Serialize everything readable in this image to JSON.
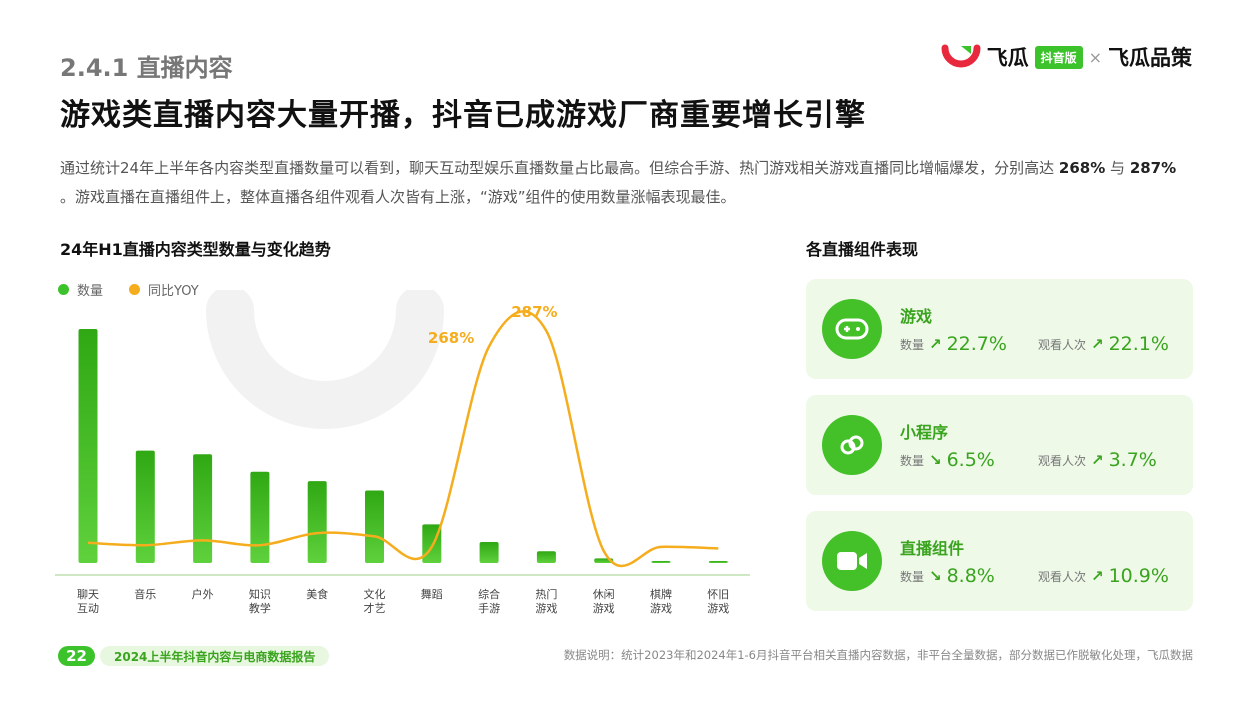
{
  "header": {
    "section": "2.4.1 直播内容",
    "headline": "游戏类直播内容大量开播，抖音已成游戏厂商重要增长引擎",
    "brand": {
      "left_text": "飞瓜",
      "badge": "抖音版",
      "separator": "×",
      "right_text": "飞瓜品策"
    }
  },
  "description": {
    "part1": "通过统计24年上半年各内容类型直播数量可以看到，聊天互动型娱乐直播数量占比最高。但综合手游、热门游戏相关游戏直播同比增幅爆发，分别高达",
    "value1": "268%",
    "conj": "与",
    "value2": "287%",
    "part2": "。游戏直播在直播组件上，整体直播各组件观看人次皆有上涨，“游戏”组件的使用数量涨幅表现最佳。"
  },
  "chart_data": {
    "type": "bar",
    "title": "24年H1直播内容类型数量与变化趋势",
    "legend_position": "top-left",
    "categories": [
      "聊天\n互动",
      "音乐",
      "户外",
      "知识\n教学",
      "美食",
      "文化\n才艺",
      "舞蹈",
      "综合\n手游",
      "热门\n游戏",
      "休闲\n游戏",
      "棋牌\n游戏",
      "怀旧\n游戏"
    ],
    "series": [
      {
        "name": "数量",
        "kind": "bar",
        "color": "#3cb521",
        "values": [
          100,
          48,
          46.5,
          39,
          35,
          31,
          16.5,
          9,
          5,
          2,
          0.5,
          0.5
        ]
      },
      {
        "name": "同比YOY",
        "kind": "line",
        "color": "#f5ad1d",
        "values": [
          25,
          22,
          28,
          22,
          37,
          33,
          20,
          268,
          287,
          15,
          20,
          18
        ]
      }
    ],
    "annotations": [
      {
        "category_index": 7,
        "label": "268%"
      },
      {
        "category_index": 8,
        "label": "287%"
      }
    ]
  },
  "panel": {
    "title": "各直播组件表现",
    "cards": [
      {
        "name": "游戏",
        "icon": "gamepad-icon",
        "count_label": "数量",
        "count_dir": "up",
        "count_value": "22.7%",
        "views_label": "观看人次",
        "views_dir": "up",
        "views_value": "22.1%"
      },
      {
        "name": "小程序",
        "icon": "mini-program-icon",
        "count_label": "数量",
        "count_dir": "down",
        "count_value": "6.5%",
        "views_label": "观看人次",
        "views_dir": "up",
        "views_value": "3.7%"
      },
      {
        "name": "直播组件",
        "icon": "video-camera-icon",
        "count_label": "数量",
        "count_dir": "down",
        "count_value": "8.8%",
        "views_label": "观看人次",
        "views_dir": "up",
        "views_value": "10.9%"
      }
    ]
  },
  "footer": {
    "page_number": "22",
    "report_name": "2024上半年抖音内容与电商数据报告",
    "note": "数据说明：统计2023年和2024年1-6月抖音平台相关直播内容数据，非平台全量数据，部分数据已作脱敏化处理，飞瓜数据"
  },
  "colors": {
    "accent_green": "#3cb521",
    "line_orange": "#f5ad1d",
    "card_bg": "#eef9e8"
  }
}
